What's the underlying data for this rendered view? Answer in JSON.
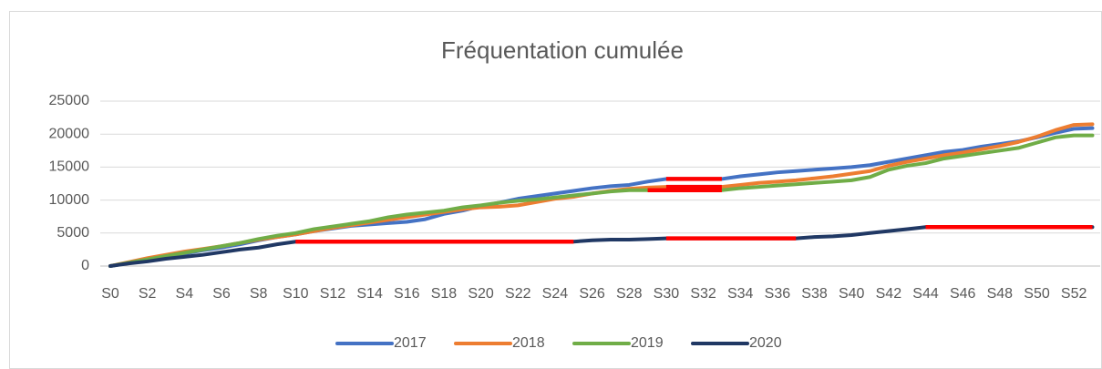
{
  "chart_data": {
    "type": "line",
    "title": "Fréquentation cumulée",
    "categories": [
      "S0",
      null,
      "S2",
      null,
      "S4",
      null,
      "S6",
      null,
      "S8",
      null,
      "S10",
      null,
      "S12",
      null,
      "S14",
      null,
      "S16",
      null,
      "S18",
      null,
      "S20",
      null,
      "S22",
      null,
      "S24",
      null,
      "S26",
      null,
      "S28",
      null,
      "S30",
      null,
      "S32",
      null,
      "S34",
      null,
      "S36",
      null,
      "S38",
      null,
      "S40",
      null,
      "S42",
      null,
      "S44",
      null,
      "S46",
      null,
      "S48",
      null,
      "S50",
      null,
      "S52",
      null
    ],
    "series": [
      {
        "name": "2017",
        "color": "#4472c4",
        "highlight": [
          [
            30,
            33
          ]
        ],
        "values": [
          0,
          500,
          900,
          1400,
          1900,
          2400,
          2800,
          3300,
          3900,
          4400,
          4800,
          5300,
          5700,
          6100,
          6300,
          6500,
          6700,
          7100,
          7900,
          8400,
          9100,
          9600,
          10200,
          10600,
          11000,
          11400,
          11800,
          12100,
          12300,
          12800,
          13200,
          13200,
          13200,
          13200,
          13600,
          13900,
          14200,
          14400,
          14600,
          14800,
          15000,
          15300,
          15800,
          16300,
          16800,
          17300,
          17600,
          18100,
          18500,
          18900,
          19500,
          20200,
          20800,
          20900
        ]
      },
      {
        "name": "2018",
        "color": "#ed7d31",
        "highlight": [
          [
            30,
            33
          ]
        ],
        "values": [
          0,
          600,
          1200,
          1700,
          2200,
          2600,
          3000,
          3500,
          4000,
          4400,
          4800,
          5300,
          5800,
          6200,
          6600,
          7000,
          7400,
          7800,
          8200,
          8600,
          8900,
          9000,
          9200,
          9700,
          10200,
          10500,
          11000,
          11400,
          11700,
          11900,
          12000,
          12000,
          12000,
          12000,
          12300,
          12600,
          12800,
          13000,
          13300,
          13600,
          14000,
          14400,
          15200,
          15800,
          16300,
          16800,
          17200,
          17700,
          18200,
          18800,
          19600,
          20600,
          21400,
          21500
        ]
      },
      {
        "name": "2019",
        "color": "#70ad47",
        "highlight": [
          [
            29,
            33
          ]
        ],
        "values": [
          0,
          500,
          1000,
          1500,
          2000,
          2500,
          3000,
          3500,
          4100,
          4600,
          5000,
          5600,
          6000,
          6400,
          6800,
          7400,
          7800,
          8100,
          8400,
          8900,
          9200,
          9600,
          9900,
          10100,
          10400,
          10700,
          11000,
          11300,
          11500,
          11500,
          11500,
          11500,
          11500,
          11500,
          11800,
          12000,
          12200,
          12400,
          12600,
          12800,
          13000,
          13500,
          14600,
          15200,
          15600,
          16300,
          16700,
          17100,
          17500,
          17900,
          18700,
          19500,
          19800,
          19800
        ]
      },
      {
        "name": "2020",
        "color": "#203864",
        "highlight": [
          [
            10,
            25
          ],
          [
            30,
            37
          ],
          [
            44,
            53
          ]
        ],
        "values": [
          0,
          400,
          700,
          1100,
          1400,
          1700,
          2100,
          2500,
          2800,
          3300,
          3700,
          3700,
          3700,
          3700,
          3700,
          3700,
          3700,
          3700,
          3700,
          3700,
          3700,
          3700,
          3700,
          3700,
          3700,
          3700,
          3900,
          4000,
          4000,
          4100,
          4200,
          4200,
          4200,
          4200,
          4200,
          4200,
          4200,
          4200,
          4400,
          4500,
          4700,
          5000,
          5300,
          5600,
          5900,
          5900,
          5900,
          5900,
          5900,
          5900,
          5900,
          5900,
          5900,
          5900
        ]
      }
    ],
    "highlight_color": "#ff0000",
    "ylim": [
      0,
      25000
    ],
    "yticks": [
      0,
      5000,
      10000,
      15000,
      20000,
      25000
    ],
    "grid": true,
    "legend": "bottom"
  }
}
